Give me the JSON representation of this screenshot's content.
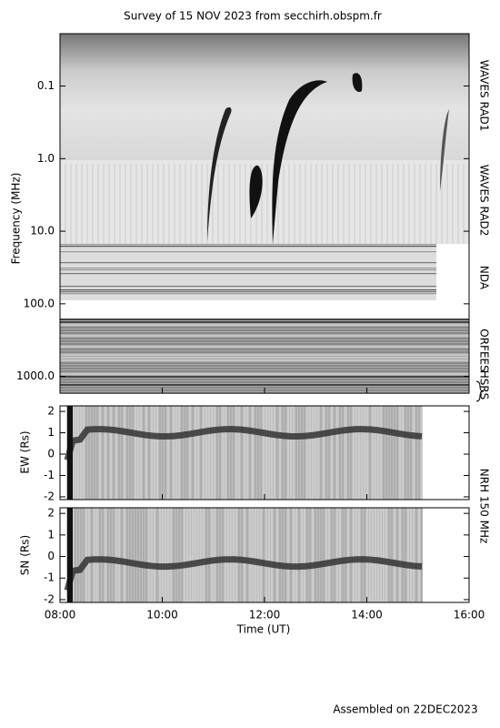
{
  "chart_data": [
    {
      "type": "spectrogram",
      "title": "Survey of 15 NOV 2023 from secchirh.obspm.fr",
      "ylabel": "Frequency (MHz)",
      "log_y": true,
      "y_inverted": true,
      "ylim": [
        0.019,
        1700
      ],
      "xlim": [
        8,
        16
      ],
      "yticks": [
        0.1,
        {
          "value": 1,
          "label": "1.0"
        },
        {
          "value": 10,
          "label": "10.0"
        },
        {
          "value": 100,
          "label": "100.0"
        },
        {
          "value": 1000,
          "label": "1000.0"
        }
      ],
      "instrument_labels": [
        "WAVES RAD1",
        "WAVES RAD2",
        "NDA",
        "ORFEES",
        "HSRS"
      ]
    },
    {
      "type": "image",
      "ylabel": "EW (Rs)",
      "ylim": [
        -2.13,
        2.26
      ],
      "xlim": [
        8,
        16
      ],
      "yticks": [
        -2,
        -1,
        0,
        1,
        2
      ]
    },
    {
      "type": "image",
      "ylabel": "SN (Rs)",
      "ylim": [
        -2.13,
        2.26
      ],
      "xlim": [
        8,
        16
      ],
      "yticks": [
        -2,
        -1,
        0,
        1,
        2
      ],
      "xlabel": "Time (UT)",
      "xticks": [
        {
          "value": 8,
          "label": "08:00"
        },
        {
          "value": 10,
          "label": "10:00"
        },
        {
          "value": 12,
          "label": "12:00"
        },
        {
          "value": 14,
          "label": "14:00"
        },
        {
          "value": 16,
          "label": "16:00"
        }
      ]
    }
  ],
  "nrh_label": "NRH 150 MHz",
  "footer": "Assembled on 22DEC2023"
}
